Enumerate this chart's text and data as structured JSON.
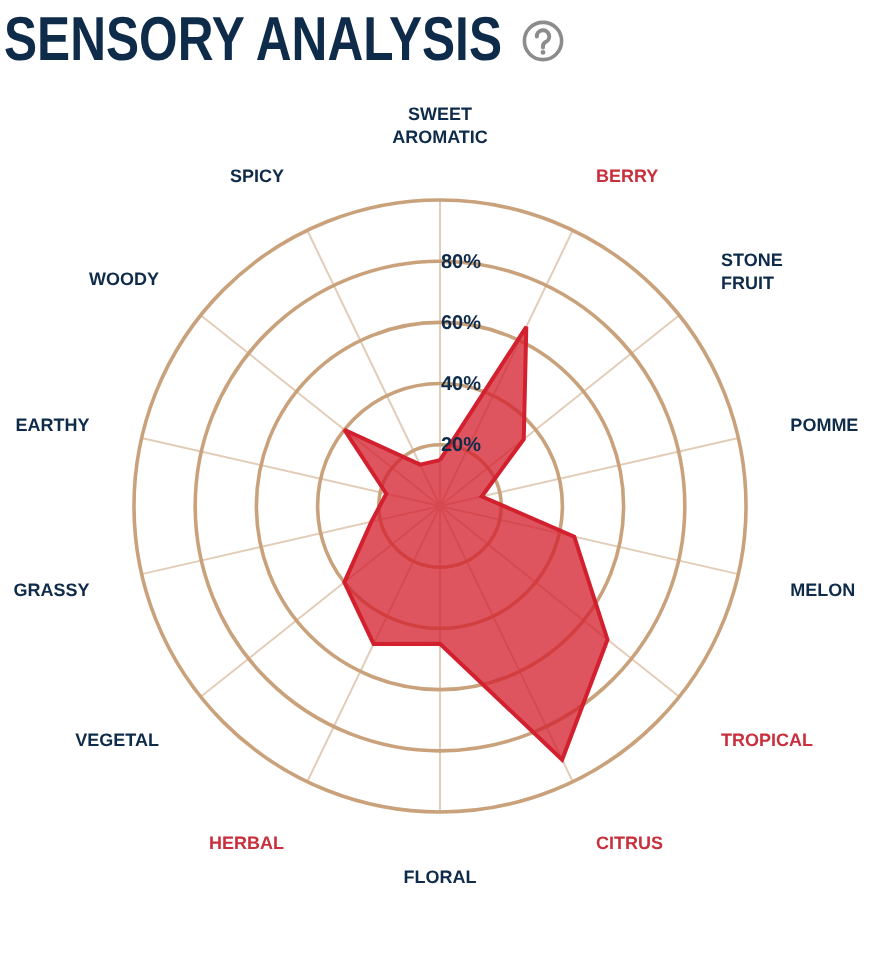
{
  "chart_data": {
    "type": "radar",
    "title": "SENSORY ANALYSIS",
    "categories": [
      "SWEET AROMATIC",
      "BERRY",
      "STONE FRUIT",
      "POMME",
      "MELON",
      "TROPICAL",
      "CITRUS",
      "FLORAL",
      "HERBAL",
      "VEGETAL",
      "GRASSY",
      "EARTHY",
      "WOODY",
      "SPICY"
    ],
    "colors": [
      "#0e2b4a",
      "#c8303d",
      "#0e2b4a",
      "#0e2b4a",
      "#0e2b4a",
      "#c8303d",
      "#c8303d",
      "#0e2b4a",
      "#c8303d",
      "#0e2b4a",
      "#0e2b4a",
      "#0e2b4a",
      "#0e2b4a",
      "#0e2b4a"
    ],
    "series": [
      {
        "color": "#d3202e",
        "values": [
          15,
          65,
          35,
          14,
          45,
          70,
          92,
          45,
          50,
          40,
          23,
          18,
          40,
          15
        ]
      }
    ],
    "ylim": [
      0,
      100
    ],
    "yticks": [
      {
        "value": 20,
        "label": "20%"
      },
      {
        "value": 40,
        "label": "40%"
      },
      {
        "value": 60,
        "label": "60%"
      },
      {
        "value": 80,
        "label": "80%"
      }
    ],
    "grid": true
  }
}
